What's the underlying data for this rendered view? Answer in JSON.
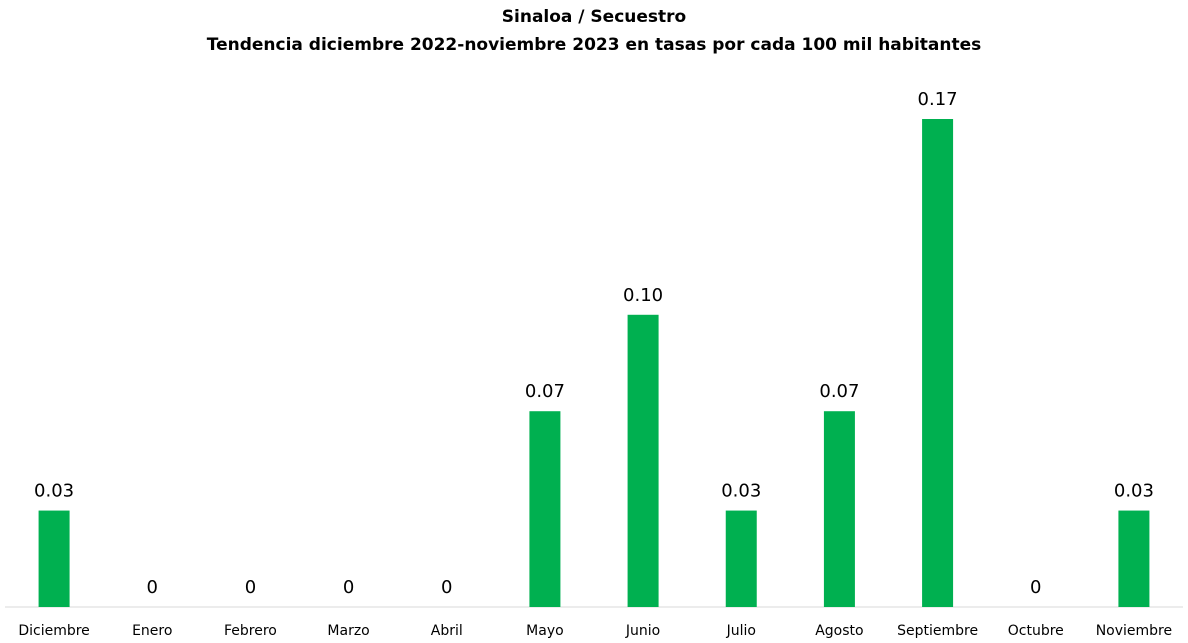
{
  "chart_data": {
    "type": "bar",
    "title": "Sinaloa / Secuestro",
    "subtitle": "Tendencia diciembre 2022-noviembre 2023 en tasas por cada  100 mil habitantes",
    "categories": [
      "Diciembre",
      "Enero",
      "Febrero",
      "Marzo",
      "Abril",
      "Mayo",
      "Junio",
      "Julio",
      "Agosto",
      "Septiembre",
      "Octubre",
      "Noviembre"
    ],
    "values": [
      0.033,
      0,
      0,
      0,
      0,
      0.067,
      0.1,
      0.033,
      0.067,
      0.167,
      0,
      0.033
    ],
    "value_labels": [
      "0.03",
      "0",
      "0",
      "0",
      "0",
      "0.07",
      "0.10",
      "0.03",
      "0.07",
      "0.17",
      "0",
      "0.03"
    ],
    "color": "#00b050"
  }
}
